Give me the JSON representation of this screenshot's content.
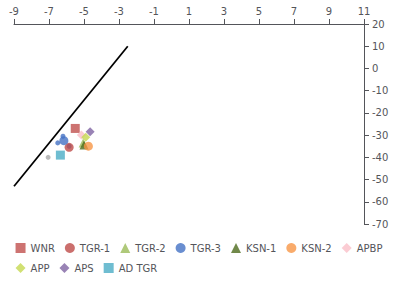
{
  "chart_data": {
    "type": "scatter",
    "xlim": [
      -9,
      11
    ],
    "ylim": [
      -70,
      20
    ],
    "xticks": [
      -9,
      -7,
      -5,
      -3,
      -1,
      1,
      3,
      5,
      7,
      9,
      11
    ],
    "yticks": [
      -70,
      -60,
      -50,
      -40,
      -30,
      -20,
      -10,
      0,
      10,
      20
    ],
    "grid": false,
    "legend": "bottom",
    "series": [
      {
        "type": "line",
        "color": "#000000",
        "x": [
          -9.0,
          -2.5
        ],
        "values": [
          -53,
          10
        ]
      },
      {
        "type": "scatter",
        "marker": "circle",
        "colors": [
          "#4472c4",
          "#4472c4",
          "#4472c4",
          "#aaaaaa"
        ],
        "x": [
          -6.5,
          -6.2,
          -5.85,
          -7.05
        ],
        "values": [
          -33.5,
          -30.5,
          -35.0,
          -40.0
        ]
      },
      {
        "name": "WNR",
        "type": "scatter",
        "color": "#c0504d",
        "marker": "square",
        "x": [
          -5.5
        ],
        "values": [
          -27.0
        ]
      },
      {
        "name": "TGR-1",
        "type": "scatter",
        "color": "#be4b48",
        "marker": "circle",
        "x": [
          -5.85
        ],
        "values": [
          -35.5
        ]
      },
      {
        "name": "TGR-2",
        "type": "scatter",
        "color": "#9bbb59",
        "marker": "triangle",
        "x": [
          -5.05
        ],
        "values": [
          -33.5
        ]
      },
      {
        "name": "TGR-3",
        "type": "scatter",
        "color": "#4472c4",
        "marker": "circle",
        "x": [
          -6.15
        ],
        "values": [
          -32.5
        ]
      },
      {
        "name": "KSN-1",
        "type": "scatter",
        "color": "#4e6b1d",
        "marker": "triangle",
        "x": [
          -5.0
        ],
        "values": [
          -34.5
        ]
      },
      {
        "name": "KSN-2",
        "type": "scatter",
        "color": "#f79646",
        "marker": "circle",
        "x": [
          -4.75
        ],
        "values": [
          -35.0
        ]
      },
      {
        "name": "APBP",
        "type": "scatter",
        "color": "#fabfc8",
        "marker": "diamond",
        "x": [
          -5.15
        ],
        "values": [
          -30.0
        ]
      },
      {
        "name": "APP",
        "type": "scatter",
        "color": "#c6d850",
        "marker": "diamond",
        "x": [
          -4.9
        ],
        "values": [
          -31.0
        ]
      },
      {
        "name": "APS",
        "type": "scatter",
        "color": "#8064a2",
        "marker": "diamond",
        "x": [
          -4.65
        ],
        "values": [
          -28.5
        ]
      },
      {
        "name": "AD TGR",
        "type": "scatter",
        "color": "#4bacc6",
        "marker": "square",
        "x": [
          -6.35
        ],
        "values": [
          -39.0
        ]
      }
    ]
  }
}
